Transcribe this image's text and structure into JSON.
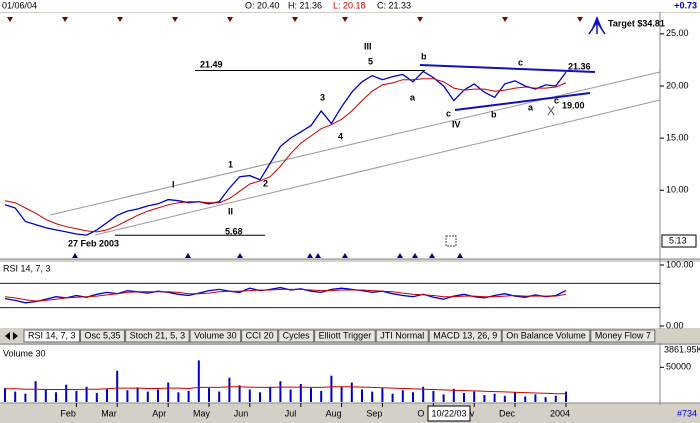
{
  "header": {
    "date": "01/06/04",
    "open": "O: 20.40",
    "high": "H: 21.36",
    "low": "L: 20.18",
    "close": "C: 21.33",
    "change": "+0.73"
  },
  "tabs": [
    "RSI 14, 7, 3",
    "Osc 5,35",
    "Stoch 21, 5, 3",
    "Volume 30",
    "CCI 20",
    "Cycles",
    "Elliott Trigger",
    "JTI Normal",
    "MACD 13, 26, 9",
    "On Balance Volume",
    "Money Flow 7"
  ],
  "cursor_label": "10/22/03",
  "footer": "#734",
  "chart_data": [
    {
      "type": "line",
      "annotations": {
        "target": "Target $34.81",
        "low_date": "27 Feb 2003"
      },
      "wave_labels": [
        "I",
        "II",
        "III",
        "IV",
        "1",
        "2",
        "3",
        "4",
        "5",
        "a",
        "b",
        "c",
        "b",
        "c",
        "a",
        "c",
        "X"
      ],
      "levels": [
        21.49,
        5.68,
        21.36,
        {
          "value": 19,
          "label": "19.00"
        }
      ],
      "last_low": 5.13,
      "categories": [
        null,
        null,
        null,
        null,
        null,
        null,
        null,
        "Feb",
        null,
        null,
        null,
        "Mar",
        null,
        null,
        null,
        null,
        "Apr",
        null,
        null,
        null,
        "May",
        null,
        null,
        null,
        "Jun",
        null,
        null,
        null,
        null,
        "Jul",
        null,
        null,
        null,
        "Aug",
        null,
        null,
        null,
        "Sep",
        null,
        null,
        null,
        null,
        "O",
        null,
        null,
        null,
        "Nov",
        null,
        null,
        null,
        "Dec",
        null,
        null,
        null,
        null,
        "2004"
      ],
      "series": [
        {
          "color": "#0000cc",
          "values": [
            8.6,
            8.3,
            7.0,
            6.7,
            6.4,
            6.2,
            6.0,
            5.8,
            5.7,
            6.2,
            6.9,
            7.6,
            8.0,
            8.2,
            8.5,
            8.7,
            9.1,
            9.0,
            8.8,
            8.9,
            8.7,
            8.9,
            10.2,
            11.3,
            11.4,
            11.0,
            12.6,
            14.2,
            15.0,
            15.6,
            16.2,
            17.6,
            16.4,
            18.0,
            19.4,
            20.4,
            21.0,
            20.6,
            20.9,
            21.1,
            20.4,
            21.4,
            20.8,
            20.0,
            18.6,
            19.6,
            20.2,
            19.4,
            18.9,
            20.2,
            20.5,
            20.0,
            19.7,
            20.1,
            20.0,
            21.33
          ]
        },
        {
          "color": "#cc0000",
          "values": [
            9.0,
            8.8,
            8.3,
            7.8,
            7.2,
            6.8,
            6.5,
            6.3,
            6.1,
            6.0,
            6.2,
            6.6,
            7.1,
            7.6,
            8.0,
            8.3,
            8.6,
            8.8,
            8.9,
            8.9,
            8.8,
            8.8,
            9.2,
            9.9,
            10.6,
            10.9,
            11.3,
            12.3,
            13.5,
            14.5,
            15.2,
            15.9,
            16.3,
            16.8,
            17.6,
            18.6,
            19.5,
            20.1,
            20.3,
            20.6,
            20.6,
            20.7,
            20.7,
            20.4,
            19.8,
            19.6,
            19.7,
            19.7,
            19.5,
            19.6,
            19.8,
            19.9,
            19.8,
            19.8,
            19.9,
            20.3
          ]
        }
      ],
      "ylim": [
        3.5,
        27
      ],
      "yticks": [
        {
          "value": 10,
          "label": "10.00"
        },
        {
          "value": 15,
          "label": "15.00"
        },
        {
          "value": 20,
          "label": "20.00"
        },
        {
          "value": 25,
          "label": "25.00"
        }
      ]
    },
    {
      "type": "line",
      "title": "RSI 14, 7, 3",
      "series": [
        {
          "color": "#0000cc",
          "values": [
            45,
            42,
            38,
            40,
            44,
            48,
            46,
            50,
            47,
            52,
            55,
            53,
            58,
            56,
            54,
            57,
            55,
            52,
            50,
            54,
            58,
            60,
            57,
            55,
            62,
            58,
            60,
            63,
            59,
            61,
            57,
            55,
            60,
            62,
            60,
            58,
            55,
            57,
            53,
            50,
            48,
            52,
            47,
            44,
            49,
            52,
            48,
            46,
            50,
            53,
            49,
            47,
            51,
            48,
            50,
            58
          ]
        },
        {
          "color": "#cc0000",
          "values": [
            48,
            46,
            43,
            41,
            42,
            44,
            46,
            47,
            48,
            49,
            51,
            53,
            55,
            56,
            56,
            56,
            56,
            55,
            53,
            53,
            54,
            56,
            57,
            57,
            58,
            59,
            59,
            60,
            60,
            60,
            59,
            58,
            58,
            59,
            59,
            59,
            58,
            57,
            56,
            54,
            52,
            51,
            50,
            48,
            48,
            49,
            49,
            48,
            48,
            49,
            50,
            49,
            49,
            49,
            49,
            52
          ]
        }
      ],
      "levels": [
        70,
        30
      ],
      "ylim": [
        0,
        100
      ],
      "yticks": [
        {
          "value": 100,
          "label": "100.00"
        },
        {
          "value": 0,
          "label": "0.00"
        }
      ]
    },
    {
      "type": "bar",
      "title": "Volume 30",
      "last_label": "3861.95K",
      "series": [
        {
          "color": "#0000cc",
          "values": [
            20000,
            15000,
            12000,
            30000,
            18000,
            14000,
            25000,
            16000,
            22000,
            13000,
            19000,
            45000,
            17000,
            21000,
            15000,
            18000,
            28000,
            14000,
            16000,
            60000,
            20000,
            15000,
            35000,
            24000,
            18000,
            14000,
            22000,
            30000,
            18000,
            26000,
            20000,
            16000,
            38000,
            22000,
            28000,
            18000,
            15000,
            20000,
            12000,
            17000,
            14000,
            22000,
            16000,
            11000,
            19000,
            13000,
            15000,
            10000,
            12000,
            9000,
            14000,
            8000,
            11000,
            7000,
            9000,
            15000
          ]
        },
        {
          "color": "#cc0000",
          "values": [
            19000,
            19000,
            18500,
            18500,
            18000,
            18000,
            18000,
            18000,
            18500,
            18500,
            19000,
            20000,
            20000,
            20000,
            19500,
            19500,
            20000,
            20000,
            19500,
            21000,
            21000,
            21000,
            22000,
            22000,
            21500,
            21000,
            21000,
            21500,
            21500,
            21500,
            21000,
            21000,
            22000,
            22000,
            22000,
            21500,
            21000,
            20500,
            20000,
            19500,
            19000,
            18500,
            18000,
            17500,
            17000,
            16500,
            16000,
            15500,
            15000,
            14500,
            14000,
            13500,
            13000,
            12500,
            12000,
            12000
          ]
        }
      ],
      "ylim": [
        0,
        75000
      ],
      "yticks": [
        50000
      ]
    }
  ]
}
